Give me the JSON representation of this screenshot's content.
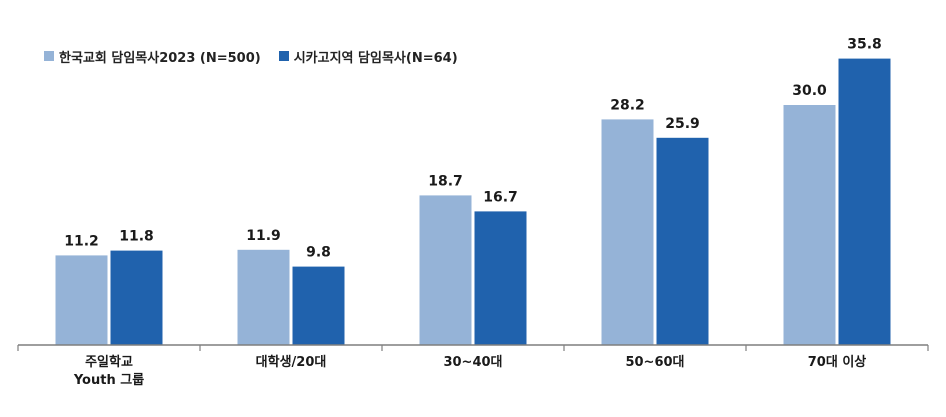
{
  "chart_data": {
    "type": "bar",
    "categories": [
      "주일학교\nYouth 그룹",
      "대학생/20대",
      "30~40대",
      "50~60대",
      "70대 이상"
    ],
    "series": [
      {
        "name": "한국교회 담임목사2023 (N=500)",
        "color": "#95b3d7",
        "values": [
          11.2,
          11.9,
          18.7,
          28.2,
          30.0
        ]
      },
      {
        "name": "시카고지역 담임목사(N=64)",
        "color": "#2062ad",
        "values": [
          11.8,
          9.8,
          16.7,
          25.9,
          35.8
        ]
      }
    ],
    "ylim": [
      0,
      40
    ],
    "grid": false,
    "legend_position": "top-left"
  }
}
